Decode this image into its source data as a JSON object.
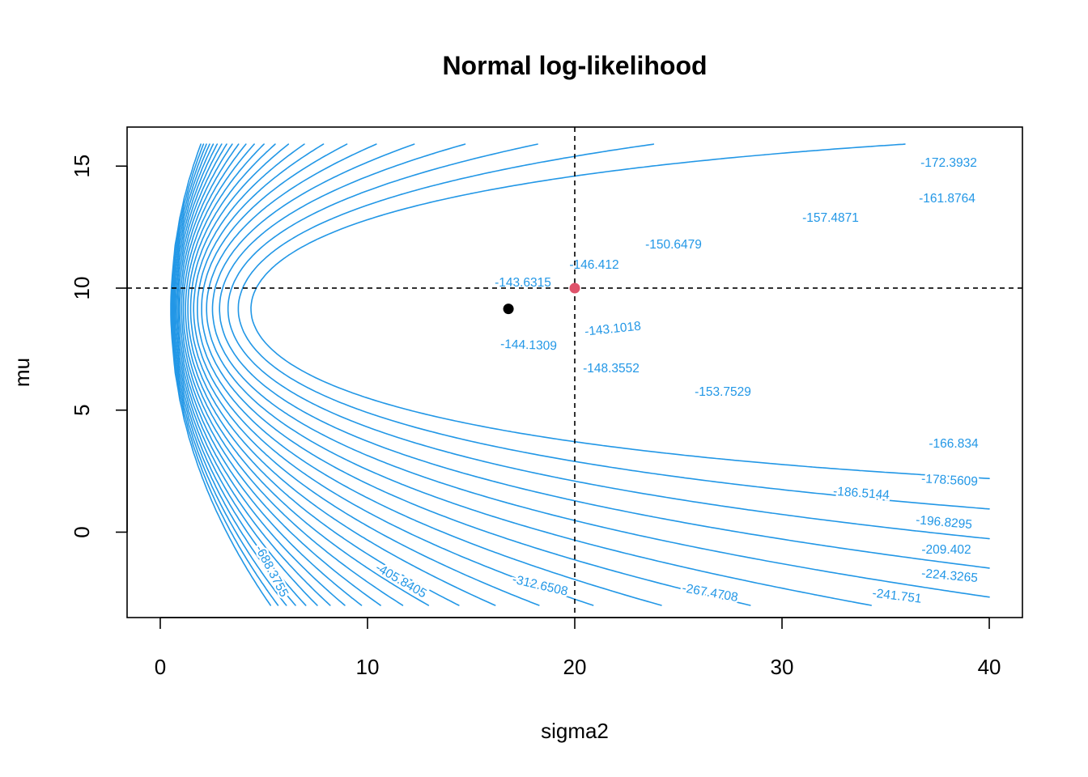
{
  "chart_data": {
    "type": "contour",
    "title": "Normal log-likelihood",
    "xlabel": "sigma2",
    "ylabel": "mu",
    "xlim": [
      -1.6,
      41.6
    ],
    "ylim": [
      -3.5,
      16.6
    ],
    "x_ticks": [
      0,
      10,
      20,
      30,
      40
    ],
    "y_ticks": [
      0,
      5,
      10,
      15
    ],
    "grid_range": {
      "x": [
        0.5,
        40
      ],
      "y": [
        -3,
        15.9
      ]
    },
    "mle_point": {
      "sigma2": 16.8,
      "mu": 9.15,
      "color": "#000000"
    },
    "reference_point": {
      "sigma2": 20,
      "mu": 10,
      "color": "#DF536B"
    },
    "reference_lines": {
      "sigma2": 20,
      "mu": 10
    },
    "contour_color": "#2297E6",
    "contour_levels": [
      -143.1018,
      -143.6315,
      -144.1309,
      -146.412,
      -148.3552,
      -150.6479,
      -153.7529,
      -157.4871,
      -161.8764,
      -166.834,
      -172.3932,
      -178.5609,
      -186.5144,
      -196.8295,
      -209.402,
      -224.3265,
      -241.751,
      -267.4708,
      -312.6508,
      -405.8405,
      -688.3755
    ],
    "contour_labels": [
      "-143.1018",
      "-143.6315",
      "-144.1309",
      "-146.412",
      "-148.3552",
      "-150.6479",
      "-153.7529",
      "-157.4871",
      "-161.8764",
      "-166.834",
      "-172.3932",
      "-178.5609",
      "-186.5144",
      "-196.8295",
      "-209.402",
      "-224.3265",
      "-241.751",
      "-267.4708",
      "-312.6508",
      "-405.8405",
      "-688.3755"
    ],
    "legend": "none",
    "grid": false
  }
}
